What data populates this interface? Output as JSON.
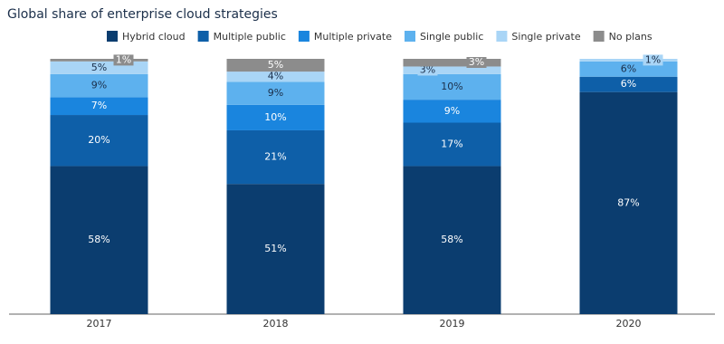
{
  "chart_data": {
    "type": "bar",
    "stacked": true,
    "title": "Global share of enterprise cloud strategies",
    "categories": [
      "2017",
      "2018",
      "2019",
      "2020"
    ],
    "ylim": [
      0,
      100
    ],
    "legend": "top",
    "series": [
      {
        "name": "Hybrid cloud",
        "color": "#0b3d6f",
        "values": [
          58,
          51,
          58,
          87
        ],
        "value_labels": [
          "58%",
          "51%",
          "58%",
          "87%"
        ]
      },
      {
        "name": "Multiple public",
        "color": "#0e5fa8",
        "values": [
          20,
          21,
          17,
          6
        ],
        "value_labels": [
          "20%",
          "21%",
          "17%",
          "6%"
        ]
      },
      {
        "name": "Multiple private",
        "color": "#1a85de",
        "values": [
          7,
          10,
          9,
          0
        ],
        "value_labels": [
          "7%",
          "10%",
          "9%",
          null
        ]
      },
      {
        "name": "Single public",
        "color": "#5db1ee",
        "values": [
          9,
          9,
          10,
          6
        ],
        "value_labels": [
          "9%",
          "9%",
          "10%",
          "6%"
        ]
      },
      {
        "name": "Single private",
        "color": "#a9d5f6",
        "values": [
          5,
          4,
          3,
          1
        ],
        "value_labels": [
          "5%",
          "4%",
          "3%",
          "1%"
        ]
      },
      {
        "name": "No plans",
        "color": "#8c8c8c",
        "values": [
          1,
          5,
          3,
          0
        ],
        "value_labels": [
          "1%",
          "5%",
          "3%",
          null
        ]
      }
    ]
  }
}
